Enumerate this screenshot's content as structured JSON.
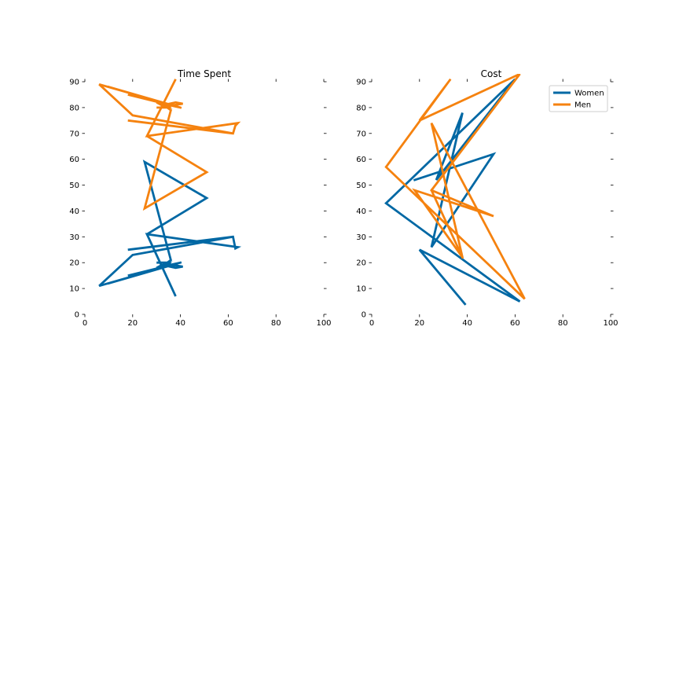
{
  "colors": {
    "women": "#0068a4",
    "men": "#f5820f"
  },
  "chart_data": [
    {
      "type": "line",
      "title": "Time Spent",
      "xlim": [
        0,
        100
      ],
      "ylim": [
        0,
        90
      ],
      "xticks": [
        0,
        20,
        40,
        60,
        80,
        100
      ],
      "yticks": [
        0,
        10,
        20,
        30,
        40,
        50,
        60,
        70,
        80,
        90
      ],
      "grid": false,
      "series": [
        {
          "name": "Women",
          "color_key": "women",
          "x": [
            40,
            6,
            6,
            40,
            6,
            6,
            40,
            18,
            40,
            6,
            20,
            62,
            18,
            62,
            63,
            64,
            26,
            38,
            26,
            51,
            25,
            36,
            33,
            38,
            41,
            34,
            35,
            30,
            36,
            34,
            32,
            30,
            40,
            10,
            10
          ],
          "y": [
            20,
            11,
            11,
            20,
            11,
            11,
            20,
            15,
            20,
            11,
            23,
            30,
            25,
            30,
            25.5,
            26,
            31,
            7,
            31,
            45,
            59,
            21,
            19,
            18,
            18.5,
            19.5,
            20,
            20,
            20,
            19.5,
            19,
            18,
            20,
            12,
            12
          ]
        },
        {
          "name": "Men",
          "color_key": "men",
          "x": [
            40,
            6,
            6,
            40,
            6,
            6,
            40,
            18,
            40,
            6,
            20,
            62,
            18,
            62,
            63,
            64,
            26,
            38,
            26,
            51,
            25,
            36,
            33,
            38,
            41,
            34,
            35,
            30,
            36,
            34,
            32,
            30,
            40,
            10,
            10
          ],
          "y": [
            80,
            89,
            89,
            80,
            89,
            89,
            80,
            85,
            80,
            89,
            77,
            70,
            75,
            70,
            73,
            74,
            69,
            91,
            69,
            55,
            41,
            79,
            81,
            82,
            81.5,
            80.5,
            80,
            80,
            80,
            80.5,
            81,
            82,
            80,
            88,
            88
          ]
        }
      ]
    },
    {
      "type": "line",
      "title": "Cost",
      "xlim": [
        0,
        100
      ],
      "ylim": [
        0,
        90
      ],
      "xticks": [
        0,
        20,
        40,
        60,
        80,
        100
      ],
      "yticks": [
        0,
        10,
        20,
        30,
        40,
        50,
        60,
        70,
        80,
        90
      ],
      "grid": false,
      "legend": {
        "location": "top-right",
        "entries": [
          "Women",
          "Men"
        ]
      },
      "series": [
        {
          "name": "Women",
          "color_key": "women",
          "x": [
            39,
            20,
            62,
            6,
            60,
            27,
            38,
            25,
            51,
            18
          ],
          "y": [
            4,
            25,
            5,
            43,
            91,
            52,
            78,
            26,
            62,
            52
          ]
        },
        {
          "name": "Men",
          "color_key": "men",
          "x": [
            38,
            25,
            64,
            6,
            33,
            20,
            62,
            25,
            38,
            18,
            51,
            25
          ],
          "y": [
            22,
            74,
            6,
            57,
            91,
            75,
            93,
            48,
            22,
            48,
            38,
            48
          ]
        }
      ]
    }
  ]
}
